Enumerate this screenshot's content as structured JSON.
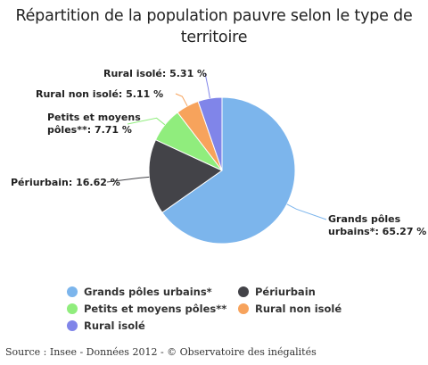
{
  "title_line1": "Répartition de la population pauvre selon le type de",
  "title_line2": "territoire",
  "source": "Source : Insee - Données 2012 - © Observatoire des inégalités",
  "chart_data": {
    "type": "pie",
    "title": "Répartition de la population pauvre selon le type de territoire",
    "slices": [
      {
        "name": "Grands pôles urbains*",
        "value": 65.27,
        "color": "#7cb5ec",
        "label_lines": [
          "Grands pôles",
          "urbains*: 65.27 %"
        ]
      },
      {
        "name": "Périurbain",
        "value": 16.62,
        "color": "#434348",
        "label_lines": [
          "Périurbain: 16.62 %"
        ]
      },
      {
        "name": "Petits et moyens pôles**",
        "value": 7.71,
        "color": "#90ed7d",
        "label_lines": [
          "Petits et moyens",
          "pôles**: 7.71 %"
        ]
      },
      {
        "name": "Rural non isolé",
        "value": 5.11,
        "color": "#f7a35c",
        "label_lines": [
          "Rural non isolé: 5.11 %"
        ]
      },
      {
        "name": "Rural isolé",
        "value": 5.31,
        "color": "#8085e9",
        "label_lines": [
          "Rural isolé: 5.31 %"
        ]
      }
    ],
    "legend": [
      "Grands pôles urbains*",
      "Périurbain",
      "Petits et moyens pôles**",
      "Rural non isolé",
      "Rural isolé"
    ],
    "legend_placement": "bottom"
  }
}
